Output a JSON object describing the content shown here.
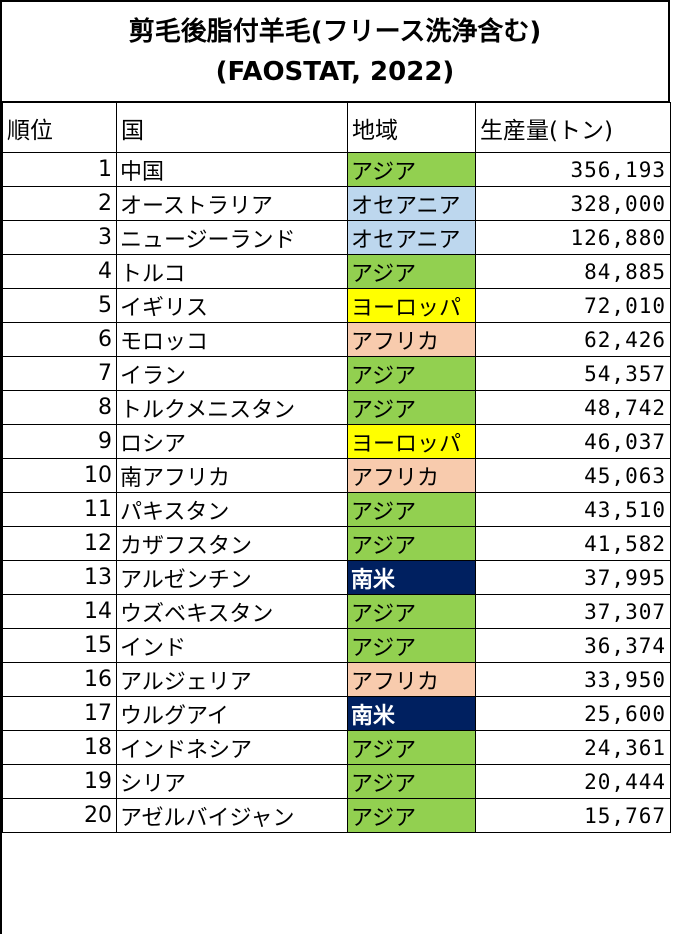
{
  "title": {
    "line1": "剪毛後脂付羊毛(フリース洗浄含む)",
    "line2": "(FAOSTAT, 2022)"
  },
  "headers": {
    "rank": "順位",
    "country": "国",
    "region": "地域",
    "production": "生産量(トン)"
  },
  "region_colors": {
    "アジア": "#92d050",
    "オセアニア": "#bdd7ee",
    "ヨーロッパ": "#ffff00",
    "アフリカ": "#f8cbad",
    "南米": "#002060"
  },
  "rows": [
    {
      "rank": "1",
      "country": "中国",
      "region": "アジア",
      "production": "356,193"
    },
    {
      "rank": "2",
      "country": "オーストラリア",
      "region": "オセアニア",
      "production": "328,000"
    },
    {
      "rank": "3",
      "country": "ニュージーランド",
      "region": "オセアニア",
      "production": "126,880"
    },
    {
      "rank": "4",
      "country": "トルコ",
      "region": "アジア",
      "production": "84,885"
    },
    {
      "rank": "5",
      "country": "イギリス",
      "region": "ヨーロッパ",
      "production": "72,010"
    },
    {
      "rank": "6",
      "country": "モロッコ",
      "region": "アフリカ",
      "production": "62,426"
    },
    {
      "rank": "7",
      "country": "イラン",
      "region": "アジア",
      "production": "54,357"
    },
    {
      "rank": "8",
      "country": "トルクメニスタン",
      "region": "アジア",
      "production": "48,742"
    },
    {
      "rank": "9",
      "country": "ロシア",
      "region": "ヨーロッパ",
      "production": "46,037"
    },
    {
      "rank": "10",
      "country": "南アフリカ",
      "region": "アフリカ",
      "production": "45,063"
    },
    {
      "rank": "11",
      "country": "パキスタン",
      "region": "アジア",
      "production": "43,510"
    },
    {
      "rank": "12",
      "country": "カザフスタン",
      "region": "アジア",
      "production": "41,582"
    },
    {
      "rank": "13",
      "country": "アルゼンチン",
      "region": "南米",
      "production": "37,995"
    },
    {
      "rank": "14",
      "country": "ウズベキスタン",
      "region": "アジア",
      "production": "37,307"
    },
    {
      "rank": "15",
      "country": "インド",
      "region": "アジア",
      "production": "36,374"
    },
    {
      "rank": "16",
      "country": "アルジェリア",
      "region": "アフリカ",
      "production": "33,950"
    },
    {
      "rank": "17",
      "country": "ウルグアイ",
      "region": "南米",
      "production": "25,600"
    },
    {
      "rank": "18",
      "country": "インドネシア",
      "region": "アジア",
      "production": "24,361"
    },
    {
      "rank": "19",
      "country": "シリア",
      "region": "アジア",
      "production": "20,444"
    },
    {
      "rank": "20",
      "country": "アゼルバイジャン",
      "region": "アジア",
      "production": "15,767"
    }
  ]
}
